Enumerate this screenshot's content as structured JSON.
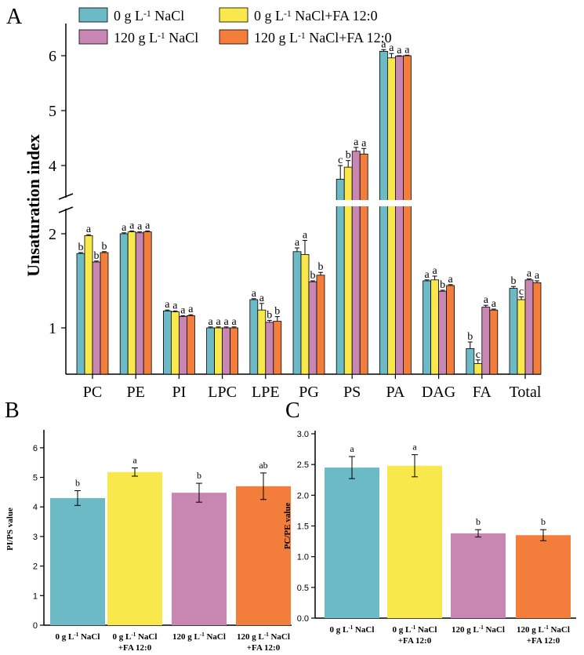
{
  "colors": {
    "teal": "#6bbac5",
    "yellow": "#f9e84b",
    "pink": "#c887b3",
    "orange": "#f37e3b"
  },
  "chart_data": [
    {
      "panel_label": "A",
      "type": "bar",
      "ylabel": "Unsaturation index",
      "categories": [
        "PC",
        "PE",
        "PI",
        "LPC",
        "LPE",
        "PG",
        "PS",
        "PA",
        "DAG",
        "FA",
        "Total"
      ],
      "legend": [
        {
          "base": "0 g L",
          "sup": "-1",
          "rest": " NaCl"
        },
        {
          "base": "0 g L",
          "sup": "-1",
          "rest": " NaCl+FA 12:0"
        },
        {
          "base": "120 g L",
          "sup": "-1",
          "rest": " NaCl"
        },
        {
          "base": "120 g L",
          "sup": "-1",
          "rest": " NaCl+FA 12:0"
        }
      ],
      "yticks_lower": [
        "1",
        "2"
      ],
      "yticks_upper": [
        "4",
        "5",
        "6"
      ],
      "axis_break": {
        "lower_range": [
          0.5,
          2.3
        ],
        "upper_range": [
          3.4,
          6.4
        ]
      },
      "series": [
        {
          "name": "0 g L-1 NaCl",
          "values": [
            1.79,
            2.0,
            1.18,
            1.0,
            1.3,
            1.81,
            3.75,
            6.08,
            1.5,
            0.78,
            1.42
          ],
          "errors": [
            0.01,
            0.01,
            0.01,
            0.01,
            0.01,
            0.04,
            0.25,
            0.03,
            0.01,
            0.07,
            0.02
          ],
          "letters": [
            "b",
            "a",
            "a",
            "a",
            "a",
            "a",
            "c",
            "a",
            "a",
            "b",
            "b"
          ]
        },
        {
          "name": "0 g L-1 NaCl+FA 12:0",
          "values": [
            1.98,
            2.02,
            1.17,
            1.0,
            1.19,
            1.78,
            3.97,
            5.96,
            1.51,
            0.62,
            1.3
          ],
          "errors": [
            0.01,
            0.01,
            0.01,
            0.01,
            0.07,
            0.15,
            0.12,
            0.08,
            0.04,
            0.04,
            0.03
          ],
          "letters": [
            "a",
            "a",
            "a",
            "a",
            "a",
            "a",
            "b",
            "a",
            "a",
            "c",
            "c"
          ]
        },
        {
          "name": "120 g L-1 NaCl",
          "values": [
            1.7,
            2.01,
            1.12,
            1.0,
            1.06,
            1.49,
            4.26,
            5.99,
            1.39,
            1.22,
            1.51
          ],
          "errors": [
            0.01,
            0.01,
            0.01,
            0.01,
            0.02,
            0.01,
            0.07,
            0.01,
            0.01,
            0.02,
            0.01
          ],
          "letters": [
            "b",
            "a",
            "a",
            "a",
            "b",
            "b",
            "a",
            "a",
            "b",
            "a",
            "a"
          ]
        },
        {
          "name": "120 g L-1 NaCl+FA 12:0",
          "values": [
            1.8,
            2.02,
            1.13,
            1.0,
            1.07,
            1.56,
            4.21,
            6.0,
            1.45,
            1.19,
            1.48
          ],
          "errors": [
            0.01,
            0.01,
            0.01,
            0.01,
            0.05,
            0.03,
            0.1,
            0.01,
            0.01,
            0.01,
            0.02
          ],
          "letters": [
            "b",
            "a",
            "a",
            "a",
            "b",
            "b",
            "a",
            "a",
            "a",
            "a",
            "a"
          ]
        }
      ]
    },
    {
      "panel_label": "B",
      "type": "bar",
      "ylabel": "PI/PS value",
      "ylim": [
        0,
        6.5
      ],
      "yticks": [
        "0",
        "1",
        "2",
        "3",
        "4",
        "5",
        "6"
      ],
      "categories": [
        {
          "line1_base": "0 g L",
          "line1_sup": "-1",
          "line1_rest": " NaCl",
          "line2": ""
        },
        {
          "line1_base": "0 g L",
          "line1_sup": "-1",
          "line1_rest": " NaCl",
          "line2": "+FA 12:0"
        },
        {
          "line1_base": "120 g L",
          "line1_sup": "-1",
          "line1_rest": " NaCl",
          "line2": ""
        },
        {
          "line1_base": "120 g L",
          "line1_sup": "-1",
          "line1_rest": " NaCl",
          "line2": "+FA 12:0"
        }
      ],
      "values": [
        4.3,
        5.18,
        4.48,
        4.7
      ],
      "errors": [
        0.25,
        0.14,
        0.32,
        0.45
      ],
      "letters": [
        "b",
        "a",
        "b",
        "ab"
      ]
    },
    {
      "panel_label": "C",
      "type": "bar",
      "ylabel": "PC/PE value",
      "ylim": [
        0,
        3.0
      ],
      "yticks": [
        "0.0",
        "0.5",
        "1.0",
        "1.5",
        "2.0",
        "2.5",
        "3.0"
      ],
      "categories": [
        {
          "line1_base": "0 g L",
          "line1_sup": "-1",
          "line1_rest": " NaCl",
          "line2": ""
        },
        {
          "line1_base": "0 g L",
          "line1_sup": "-1",
          "line1_rest": " NaCl",
          "line2": "+FA 12:0"
        },
        {
          "line1_base": "120 g L",
          "line1_sup": "-1",
          "line1_rest": " NaCl",
          "line2": ""
        },
        {
          "line1_base": "120 g L",
          "line1_sup": "-1",
          "line1_rest": " NaCl",
          "line2": "+FA 12:0"
        }
      ],
      "values": [
        2.45,
        2.48,
        1.38,
        1.35
      ],
      "errors": [
        0.18,
        0.18,
        0.06,
        0.09
      ],
      "letters": [
        "a",
        "a",
        "b",
        "b"
      ]
    }
  ]
}
